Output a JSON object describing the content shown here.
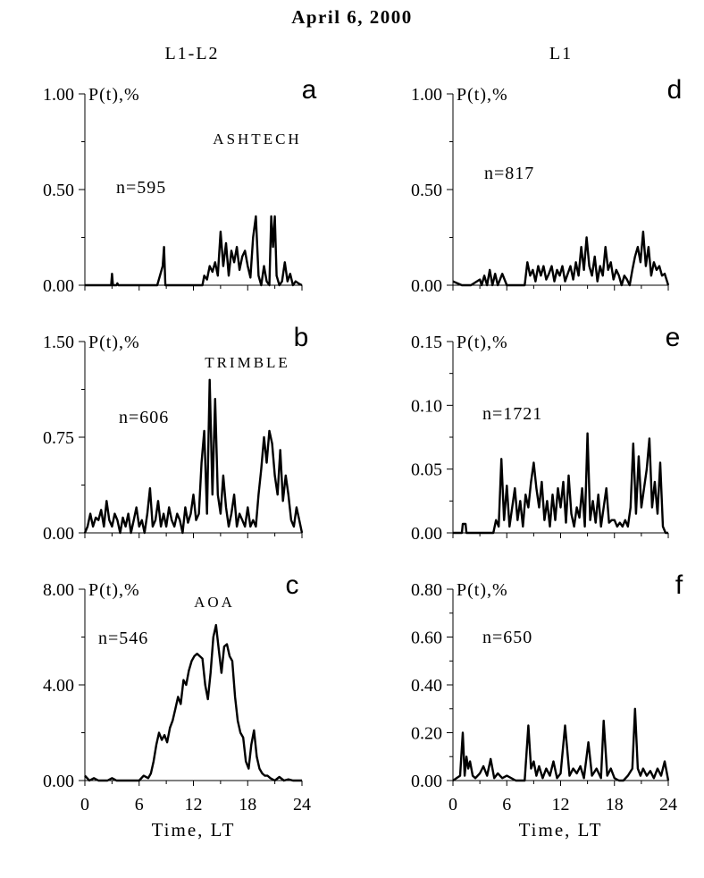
{
  "figure": {
    "title": "April 6, 2000",
    "column_headers": [
      "L1-L2",
      "L1"
    ],
    "xlabel": "Time, LT",
    "x_ticks": [
      "0",
      "6",
      "12",
      "18",
      "24"
    ]
  },
  "chart_data": [
    {
      "panel": "a",
      "type": "line",
      "column": "L1-L2",
      "annotation": "ASHTECH",
      "n_label": "n=595",
      "ylabel": "P(t),%",
      "xlabel": "",
      "xlim": [
        0,
        24
      ],
      "ylim": [
        0,
        1.0
      ],
      "y_ticks": [
        "0.00",
        "0.50",
        "1.00"
      ],
      "x": [
        0,
        1,
        2,
        2.9,
        3.0,
        3.1,
        3.5,
        3.6,
        3.7,
        4,
        8,
        8.6,
        8.75,
        8.9,
        9.5,
        10,
        13,
        13.2,
        13.5,
        13.8,
        14.1,
        14.4,
        14.7,
        15,
        15.3,
        15.6,
        15.9,
        16.2,
        16.5,
        16.8,
        17.1,
        17.4,
        17.7,
        18,
        18.3,
        18.6,
        18.9,
        19.2,
        19.5,
        19.8,
        20.1,
        20.4,
        20.6,
        20.8,
        21.0,
        21.2,
        21.5,
        21.8,
        22.1,
        22.4,
        22.7,
        23,
        23.3,
        23.6,
        24
      ],
      "y": [
        0,
        0,
        0,
        0,
        0.06,
        0,
        0,
        0.01,
        0,
        0,
        0,
        0.1,
        0.2,
        0,
        0,
        0,
        0,
        0.05,
        0.03,
        0.1,
        0.07,
        0.12,
        0.05,
        0.28,
        0.1,
        0.22,
        0.05,
        0.18,
        0.12,
        0.2,
        0.08,
        0.15,
        0.18,
        0.1,
        0.04,
        0.25,
        0.36,
        0.05,
        0,
        0.1,
        0.02,
        0,
        0.36,
        0.2,
        0.36,
        0.05,
        0,
        0.02,
        0.12,
        0.02,
        0.06,
        0,
        0.02,
        0.01,
        0
      ]
    },
    {
      "panel": "b",
      "type": "line",
      "column": "L1-L2",
      "annotation": "TRIMBLE",
      "n_label": "n=606",
      "ylabel": "P(t),%",
      "xlabel": "",
      "xlim": [
        0,
        24
      ],
      "ylim": [
        0,
        1.5
      ],
      "y_ticks": [
        "0.00",
        "0.75",
        "1.50"
      ],
      "x": [
        0,
        0.3,
        0.6,
        0.9,
        1.2,
        1.5,
        1.8,
        2.1,
        2.4,
        2.7,
        3.0,
        3.3,
        3.6,
        3.9,
        4.2,
        4.5,
        4.8,
        5.1,
        5.4,
        5.7,
        6.0,
        6.3,
        6.6,
        6.9,
        7.2,
        7.5,
        7.8,
        8.1,
        8.4,
        8.7,
        9.0,
        9.3,
        9.6,
        9.9,
        10.2,
        10.5,
        10.8,
        11.1,
        11.4,
        11.7,
        12.0,
        12.3,
        12.6,
        12.9,
        13.2,
        13.5,
        13.8,
        14.1,
        14.4,
        14.7,
        15.0,
        15.3,
        15.6,
        15.9,
        16.2,
        16.5,
        16.8,
        17.1,
        17.4,
        17.7,
        18.0,
        18.3,
        18.6,
        18.9,
        19.2,
        19.5,
        19.8,
        20.1,
        20.4,
        20.7,
        21.0,
        21.3,
        21.6,
        21.9,
        22.2,
        22.5,
        22.8,
        23.1,
        23.4,
        23.7,
        24
      ],
      "y": [
        0,
        0.05,
        0.15,
        0.05,
        0.12,
        0.1,
        0.18,
        0.05,
        0.25,
        0.1,
        0.05,
        0.15,
        0.1,
        0,
        0.12,
        0.05,
        0.15,
        0,
        0.1,
        0.2,
        0.05,
        0.1,
        0,
        0.15,
        0.35,
        0.05,
        0.1,
        0.25,
        0.05,
        0.15,
        0.05,
        0.2,
        0.1,
        0.05,
        0.15,
        0.1,
        0,
        0.2,
        0.08,
        0.15,
        0.3,
        0.1,
        0.15,
        0.55,
        0.8,
        0.15,
        1.2,
        0.3,
        1.05,
        0.3,
        0.15,
        0.45,
        0.2,
        0.05,
        0.15,
        0.3,
        0.05,
        0.15,
        0.1,
        0.05,
        0.2,
        0.05,
        0.1,
        0.05,
        0.3,
        0.5,
        0.75,
        0.55,
        0.8,
        0.7,
        0.45,
        0.3,
        0.65,
        0.25,
        0.45,
        0.3,
        0.1,
        0.05,
        0.2,
        0.1,
        0
      ]
    },
    {
      "panel": "c",
      "type": "line",
      "column": "L1-L2",
      "annotation": "AOA",
      "n_label": "n=546",
      "ylabel": "P(t),%",
      "xlabel": "Time, LT",
      "xlim": [
        0,
        24
      ],
      "ylim": [
        0,
        8.0
      ],
      "y_ticks": [
        "0.00",
        "4.00",
        "8.00"
      ],
      "x": [
        0,
        0.5,
        1,
        1.5,
        2,
        2.5,
        3,
        3.5,
        4,
        5,
        6,
        6.5,
        7,
        7.3,
        7.6,
        7.9,
        8.2,
        8.5,
        8.8,
        9.1,
        9.4,
        9.7,
        10,
        10.3,
        10.6,
        10.9,
        11.2,
        11.5,
        11.8,
        12.1,
        12.4,
        12.7,
        13,
        13.3,
        13.6,
        13.9,
        14.2,
        14.5,
        14.8,
        15.1,
        15.4,
        15.7,
        16,
        16.3,
        16.6,
        16.9,
        17.2,
        17.5,
        17.8,
        18.1,
        18.4,
        18.7,
        19,
        19.3,
        19.6,
        19.9,
        20.2,
        20.5,
        21,
        21.5,
        22,
        22.5,
        23,
        23.5,
        24
      ],
      "y": [
        0.2,
        0,
        0.1,
        0,
        0,
        0,
        0.1,
        0,
        0,
        0,
        0,
        0.2,
        0.1,
        0.3,
        0.8,
        1.5,
        2.0,
        1.7,
        1.9,
        1.6,
        2.2,
        2.5,
        3.0,
        3.5,
        3.2,
        4.2,
        4.0,
        4.6,
        5.0,
        5.2,
        5.3,
        5.2,
        5.1,
        4.0,
        3.4,
        4.5,
        6.0,
        6.5,
        5.5,
        4.5,
        5.6,
        5.7,
        5.2,
        5.0,
        3.5,
        2.5,
        2.0,
        1.8,
        0.8,
        0.5,
        1.5,
        2.1,
        1.0,
        0.5,
        0.3,
        0.2,
        0.2,
        0.1,
        0,
        0.15,
        0,
        0.05,
        0,
        0,
        0
      ]
    },
    {
      "panel": "d",
      "type": "line",
      "column": "L1",
      "annotation": "",
      "n_label": "n=817",
      "ylabel": "P(t),%",
      "xlabel": "",
      "xlim": [
        0,
        24
      ],
      "ylim": [
        0,
        1.0
      ],
      "y_ticks": [
        "0.00",
        "0.50",
        "1.00"
      ],
      "x": [
        0,
        0.5,
        1,
        2,
        3,
        3.2,
        3.5,
        3.8,
        4.1,
        4.4,
        4.7,
        5,
        5.5,
        6,
        8,
        8.3,
        8.6,
        8.9,
        9.2,
        9.5,
        9.8,
        10.1,
        10.4,
        10.7,
        11,
        11.3,
        11.6,
        11.9,
        12.2,
        12.5,
        12.8,
        13.1,
        13.4,
        13.7,
        14,
        14.3,
        14.6,
        14.9,
        15.2,
        15.5,
        15.8,
        16.1,
        16.4,
        16.7,
        17,
        17.3,
        17.6,
        17.9,
        18.2,
        18.5,
        18.8,
        19.1,
        19.4,
        19.7,
        20,
        20.3,
        20.6,
        20.9,
        21.2,
        21.5,
        21.8,
        22.1,
        22.4,
        22.7,
        23,
        23.3,
        23.6,
        24
      ],
      "y": [
        0.02,
        0.01,
        0,
        0,
        0.03,
        0,
        0.05,
        0,
        0.08,
        0,
        0.06,
        0,
        0.06,
        0,
        0,
        0.12,
        0.05,
        0.08,
        0.02,
        0.1,
        0.05,
        0.1,
        0.03,
        0.06,
        0.1,
        0.02,
        0.08,
        0.05,
        0.1,
        0.02,
        0.06,
        0.1,
        0.03,
        0.12,
        0.05,
        0.2,
        0.08,
        0.25,
        0.1,
        0.05,
        0.15,
        0.02,
        0.1,
        0.05,
        0.2,
        0.08,
        0.12,
        0.03,
        0.08,
        0.05,
        0,
        0.05,
        0.03,
        0,
        0.08,
        0.15,
        0.2,
        0.12,
        0.28,
        0.1,
        0.2,
        0.05,
        0.12,
        0.08,
        0.1,
        0.05,
        0.06,
        0
      ]
    },
    {
      "panel": "e",
      "type": "line",
      "column": "L1",
      "annotation": "",
      "n_label": "n=1721",
      "ylabel": "P(t),%",
      "xlabel": "",
      "xlim": [
        0,
        24
      ],
      "ylim": [
        0,
        0.15
      ],
      "y_ticks": [
        "0.00",
        "0.05",
        "0.10",
        "0.15"
      ],
      "x": [
        0,
        1,
        1.1,
        1.3,
        1.4,
        1.5,
        3,
        4.5,
        4.8,
        5.1,
        5.4,
        5.7,
        6.0,
        6.3,
        6.6,
        6.9,
        7.2,
        7.5,
        7.8,
        8.1,
        8.4,
        8.7,
        9.0,
        9.3,
        9.6,
        9.9,
        10.2,
        10.5,
        10.8,
        11.1,
        11.4,
        11.7,
        12.0,
        12.3,
        12.6,
        12.9,
        13.2,
        13.5,
        13.8,
        14.1,
        14.4,
        14.7,
        15.0,
        15.3,
        15.6,
        15.9,
        16.2,
        16.5,
        16.8,
        17.1,
        17.4,
        17.7,
        18.0,
        18.3,
        18.6,
        18.9,
        19.2,
        19.5,
        19.8,
        20.1,
        20.4,
        20.7,
        21.0,
        21.3,
        21.6,
        21.9,
        22.2,
        22.5,
        22.8,
        23.1,
        23.4,
        23.7,
        24
      ],
      "y": [
        0,
        0,
        0.007,
        0.007,
        0.007,
        0,
        0,
        0,
        0.01,
        0.005,
        0.058,
        0.01,
        0.037,
        0.005,
        0.02,
        0.035,
        0.01,
        0.025,
        0.005,
        0.03,
        0.02,
        0.04,
        0.055,
        0.035,
        0.02,
        0.04,
        0.01,
        0.025,
        0.005,
        0.03,
        0.01,
        0.035,
        0.02,
        0.04,
        0.008,
        0.045,
        0.015,
        0.005,
        0.02,
        0.012,
        0.035,
        0.005,
        0.078,
        0.01,
        0.025,
        0.008,
        0.03,
        0.005,
        0.02,
        0.035,
        0.008,
        0.01,
        0.01,
        0.005,
        0.008,
        0.005,
        0.01,
        0.005,
        0.02,
        0.07,
        0.015,
        0.06,
        0.02,
        0.035,
        0.05,
        0.074,
        0.02,
        0.04,
        0.015,
        0.055,
        0.005,
        0,
        0
      ]
    },
    {
      "panel": "f",
      "type": "line",
      "column": "L1",
      "annotation": "",
      "n_label": "n=650",
      "ylabel": "P(t),%",
      "xlabel": "Time, LT",
      "xlim": [
        0,
        24
      ],
      "ylim": [
        0,
        0.8
      ],
      "y_ticks": [
        "0.00",
        "0.20",
        "0.40",
        "0.60",
        "0.80"
      ],
      "x": [
        0,
        0.8,
        1.1,
        1.3,
        1.5,
        1.7,
        1.9,
        2.2,
        2.5,
        3,
        3.4,
        3.8,
        4.2,
        4.6,
        5,
        5.5,
        6,
        7,
        8,
        8.4,
        8.7,
        9,
        9.3,
        9.6,
        10,
        10.4,
        10.8,
        11.2,
        11.6,
        12,
        12.5,
        13,
        13.4,
        13.8,
        14.2,
        14.6,
        15.1,
        15.5,
        16,
        16.5,
        16.8,
        17.2,
        17.6,
        18,
        18.5,
        19,
        19.5,
        20,
        20.3,
        20.6,
        20.9,
        21.2,
        21.6,
        22,
        22.4,
        22.8,
        23.2,
        23.6,
        24
      ],
      "y": [
        0,
        0.02,
        0.2,
        0.02,
        0.1,
        0.05,
        0.08,
        0.02,
        0.01,
        0.03,
        0.06,
        0.02,
        0.09,
        0.01,
        0.03,
        0.01,
        0.02,
        0,
        0,
        0.23,
        0.05,
        0.08,
        0.02,
        0.06,
        0.01,
        0.05,
        0.02,
        0.08,
        0.01,
        0.03,
        0.23,
        0.02,
        0.05,
        0.03,
        0.06,
        0.01,
        0.16,
        0.02,
        0.05,
        0.01,
        0.25,
        0.02,
        0.05,
        0.01,
        0,
        0,
        0.02,
        0.05,
        0.3,
        0.05,
        0.02,
        0.05,
        0.02,
        0.04,
        0.01,
        0.05,
        0.02,
        0.08,
        0
      ]
    }
  ]
}
